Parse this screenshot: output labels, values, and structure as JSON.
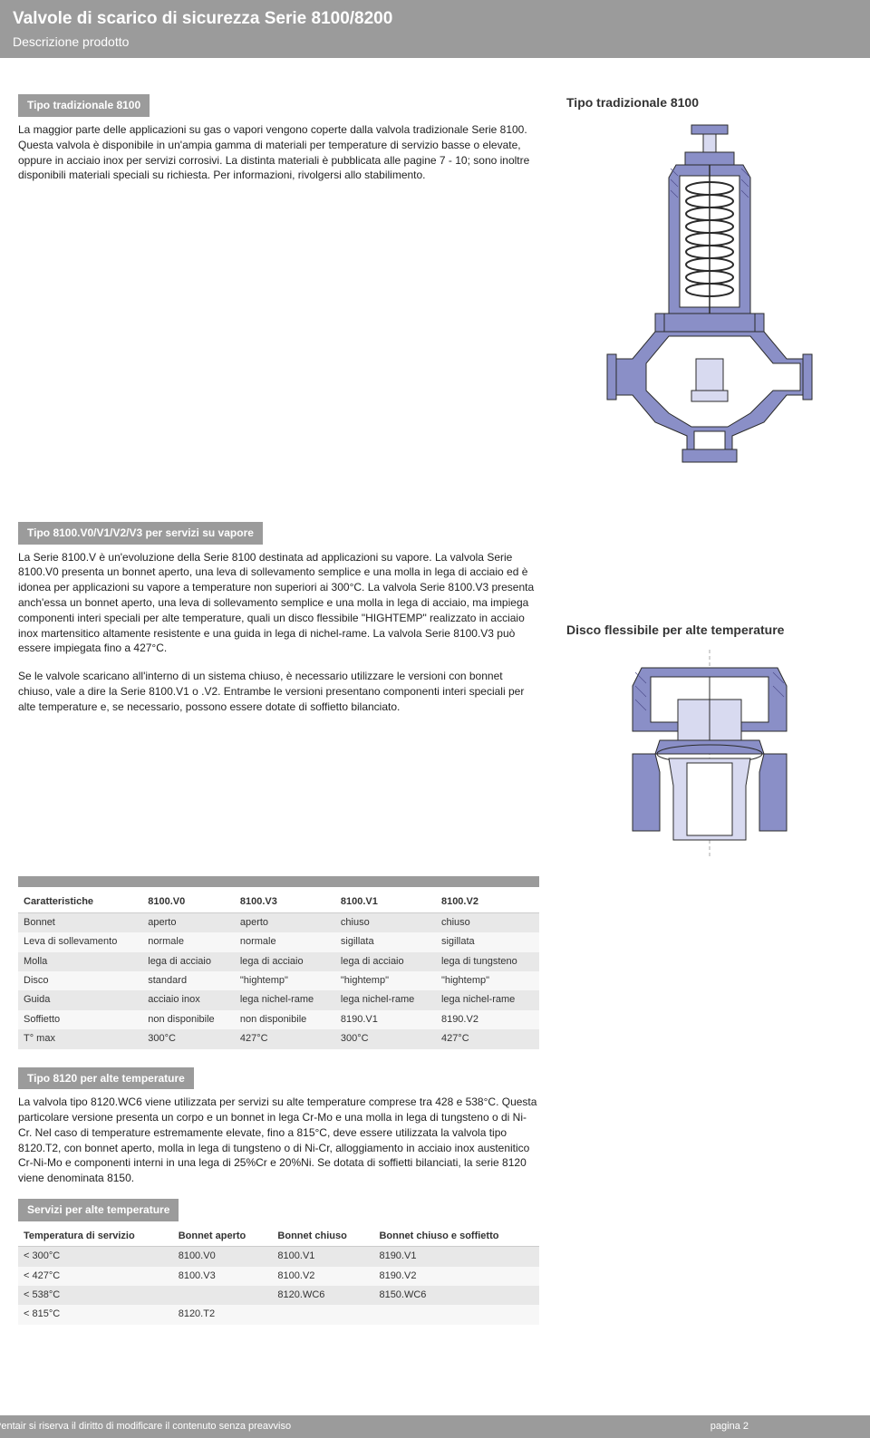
{
  "colors": {
    "header_bg": "#9b9b9b",
    "diagram_fill": "#8a8fc7",
    "diagram_stroke": "#2b2b2b",
    "diagram_light": "#d8daf0",
    "row_odd": "#e8e8e8",
    "row_even": "#f7f7f7"
  },
  "header": {
    "title": "Valvole di scarico di sicurezza Serie 8100/8200",
    "subtitle": "Descrizione prodotto"
  },
  "section1": {
    "label": "Tipo tradizionale 8100",
    "text": "La maggior parte delle applicazioni su gas o vapori vengono coperte dalla valvola tradizionale Serie 8100. Questa valvola è disponibile in un'ampia gamma di materiali per temperature di servizio basse o elevate, oppure in acciaio inox per servizi corrosivi. La distinta materiali è pubblicata alle pagine 7 - 10; sono inoltre disponibili materiali speciali su richiesta. Per informazioni, rivolgersi allo stabilimento.",
    "right_title": "Tipo tradizionale 8100"
  },
  "section2": {
    "label": "Tipo 8100.V0/V1/V2/V3 per servizi su vapore",
    "text": "La Serie 8100.V è un'evoluzione della Serie 8100 destinata ad applicazioni su vapore. La valvola Serie 8100.V0 presenta un bonnet aperto, una leva di sollevamento semplice e una molla in lega di acciaio ed è idonea per applicazioni su vapore a temperature non superiori ai 300°C. La valvola Serie 8100.V3 presenta anch'essa un bonnet aperto, una leva di sollevamento semplice e una molla in lega di acciaio, ma impiega componenti interi speciali per alte temperature, quali un disco flessibile \"HIGHTEMP\" realizzato in acciaio inox martensitico altamente resistente e una guida in lega di nichel-rame. La valvola Serie 8100.V3 può essere impiegata fino a 427°C.",
    "text2": "Se le valvole scaricano all'interno di un sistema chiuso, è necessario utilizzare le versioni con bonnet chiuso, vale a dire la Serie 8100.V1 o .V2. Entrambe le versioni presentano componenti interi speciali per alte temperature e, se necessario, possono essere dotate di soffietto bilanciato.",
    "right_title": "Disco flessibile per alte temperature"
  },
  "table1": {
    "headers": [
      "Caratteristiche",
      "8100.V0",
      "8100.V3",
      "8100.V1",
      "8100.V2"
    ],
    "rows": [
      [
        "Bonnet",
        "aperto",
        "aperto",
        "chiuso",
        "chiuso"
      ],
      [
        "Leva di sollevamento",
        "normale",
        "normale",
        "sigillata",
        "sigillata"
      ],
      [
        "Molla",
        "lega di acciaio",
        "lega di acciaio",
        "lega di acciaio",
        "lega di tungsteno"
      ],
      [
        "Disco",
        "standard",
        "\"hightemp\"",
        "\"hightemp\"",
        "\"hightemp\""
      ],
      [
        "Guida",
        "acciaio inox",
        "lega nichel-rame",
        "lega nichel-rame",
        "lega nichel-rame"
      ],
      [
        "Soffietto",
        "non disponibile",
        "non disponibile",
        "8190.V1",
        "8190.V2"
      ],
      [
        "T° max",
        "300°C",
        "427°C",
        "300°C",
        "427°C"
      ]
    ]
  },
  "section3": {
    "label": "Tipo 8120 per alte temperature",
    "text": "La valvola tipo 8120.WC6 viene utilizzata per servizi su alte temperature comprese tra 428 e 538°C. Questa particolare versione presenta un corpo e un bonnet in lega Cr-Mo e una molla in lega di tungsteno o di Ni-Cr. Nel caso di temperature estremamente elevate, fino a 815°C, deve essere utilizzata la valvola tipo 8120.T2, con bonnet aperto, molla in lega di tungsteno o di Ni-Cr, alloggiamento in acciaio inox austenitico Cr-Ni-Mo e componenti interni in una lega di 25%Cr e 20%Ni. Se dotata di soffietti bilanciati, la serie 8120 viene denominata 8150."
  },
  "section4": {
    "label": "Servizi per alte temperature"
  },
  "table2": {
    "headers": [
      "Temperatura di servizio",
      "Bonnet aperto",
      "Bonnet chiuso",
      "Bonnet chiuso e soffietto"
    ],
    "rows": [
      [
        "< 300°C",
        "8100.V0",
        "8100.V1",
        "8190.V1"
      ],
      [
        "< 427°C",
        "8100.V3",
        "8100.V2",
        "8190.V2"
      ],
      [
        "< 538°C",
        "",
        "8120.WC6",
        "8150.WC6"
      ],
      [
        "< 815°C",
        "8120.T2",
        "",
        ""
      ]
    ]
  },
  "footer": {
    "left": "Pentair si riserva il diritto di modificare il contenuto senza preavviso",
    "right": "pagina 2"
  }
}
